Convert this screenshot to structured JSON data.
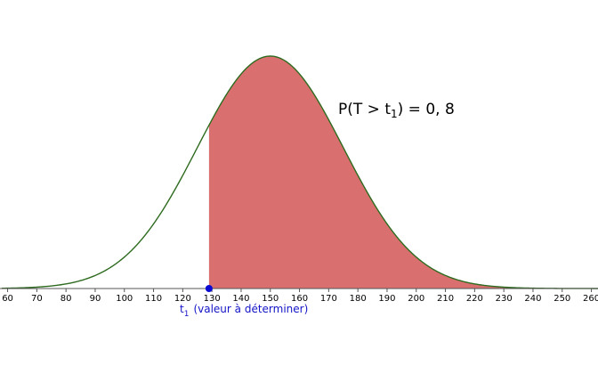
{
  "chart_data": {
    "type": "area",
    "distribution": "normal",
    "mean": 150,
    "std_dev": 25,
    "x_ticks": [
      60,
      70,
      80,
      90,
      100,
      110,
      120,
      130,
      140,
      150,
      160,
      170,
      180,
      190,
      200,
      210,
      220,
      230,
      240,
      250,
      260
    ],
    "xlim": [
      58,
      263
    ],
    "shaded_from": 129,
    "shaded_to": 263,
    "point": {
      "x": 129,
      "label_main": "t",
      "label_sub": "1",
      "label_rest": "(valeur à déterminer)"
    },
    "annotation": {
      "prefix": "P(T > t",
      "sub": "1",
      "suffix": ") = 0, 8"
    },
    "colors": {
      "curve": "#2e6b1f",
      "fill": "#d9706f",
      "axis": "#555555",
      "point": "#0a0ad2",
      "point_label": "#1414c8"
    }
  }
}
